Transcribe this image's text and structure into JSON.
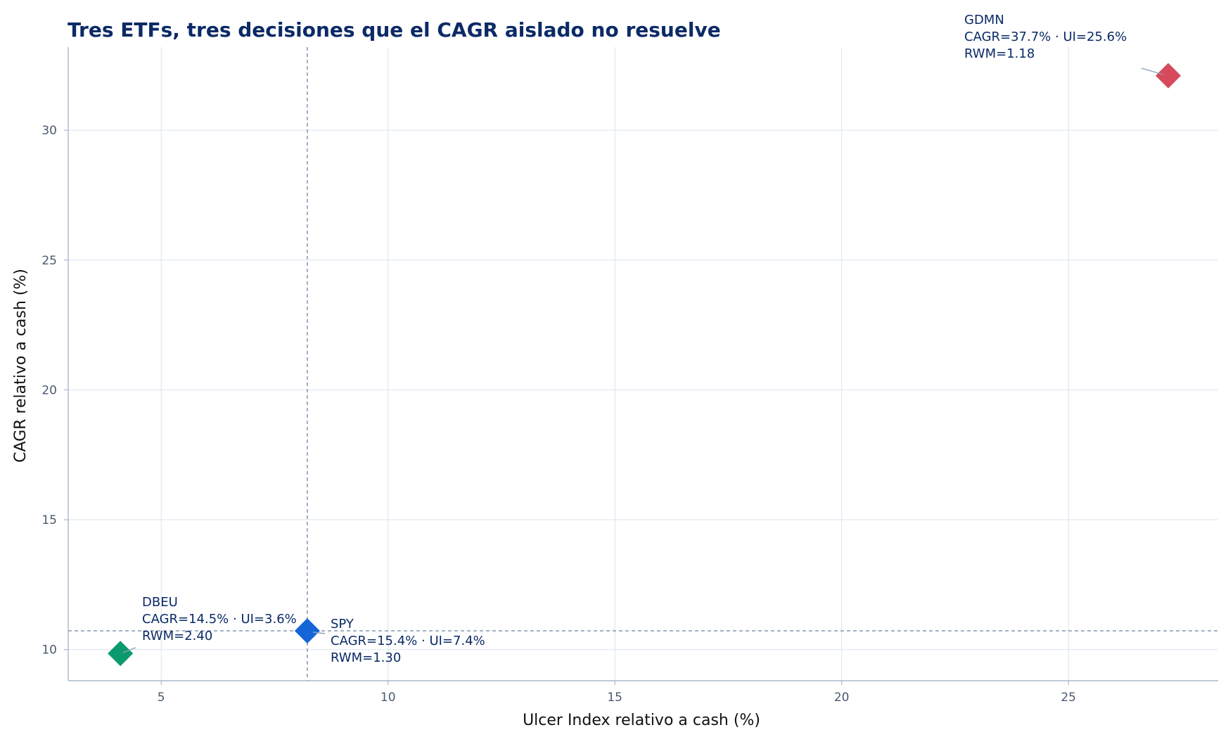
{
  "chart_data": {
    "type": "scatter",
    "title": "Tres ETFs, tres decisiones que el CAGR aislado no resuelve",
    "xlabel": "Ulcer Index relativo a cash (%)",
    "ylabel": "CAGR relativo a cash (%)",
    "xlim": [
      2.95,
      28.3
    ],
    "ylim": [
      8.8,
      33.2
    ],
    "xticks": [
      5,
      10,
      15,
      20,
      25
    ],
    "yticks": [
      10,
      15,
      20,
      25,
      30
    ],
    "grid": true,
    "marker": "diamond",
    "reference_lines": {
      "x": 8.22,
      "y": 10.72
    },
    "points": [
      {
        "name": "DBEU",
        "x": 4.1,
        "y": 9.85,
        "color": "#0b9a6e",
        "label_lines": [
          "DBEU",
          "CAGR=14.5% · UI=3.6%",
          "RWM=2.40"
        ]
      },
      {
        "name": "SPY",
        "x": 8.22,
        "y": 10.72,
        "color": "#1565d8",
        "label_lines": [
          "SPY",
          "CAGR=15.4% · UI=7.4%",
          "RWM=1.30"
        ]
      },
      {
        "name": "GDMN",
        "x": 27.2,
        "y": 32.1,
        "color": "#d64a5c",
        "label_lines": [
          "GDMN",
          "CAGR=37.7% · UI=25.6%",
          "RWM=1.18"
        ]
      }
    ]
  }
}
